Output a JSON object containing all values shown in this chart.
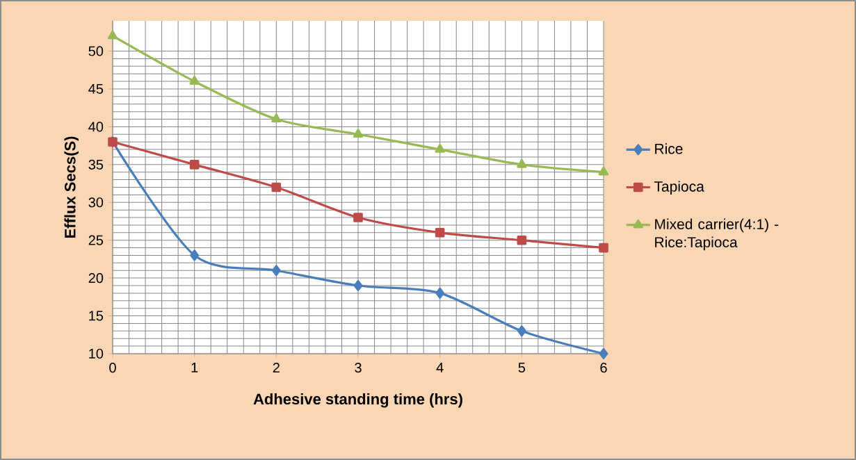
{
  "chart_data": {
    "type": "line",
    "xlabel": "Adhesive standing time (hrs)",
    "ylabel": "Efflux Secs(S)",
    "x": [
      0,
      1,
      2,
      3,
      4,
      5,
      6
    ],
    "series": [
      {
        "name": "Rice",
        "color": "#4a7ebb",
        "marker": "diamond",
        "values": [
          38,
          23,
          21,
          19,
          18,
          13,
          10
        ]
      },
      {
        "name": "Tapioca",
        "color": "#be4b48",
        "marker": "square",
        "values": [
          38,
          35,
          32,
          28,
          26,
          25,
          24
        ]
      },
      {
        "name": "Mixed carrier(4:1) - Rice:Tapioca",
        "color": "#98b954",
        "marker": "triangle",
        "values": [
          52,
          46,
          41,
          39,
          37,
          35,
          34
        ]
      }
    ],
    "xlim": [
      0,
      6
    ],
    "ylim": [
      10,
      54
    ],
    "xticks": [
      0,
      1,
      2,
      3,
      4,
      5,
      6
    ],
    "yticks": [
      10,
      15,
      20,
      25,
      30,
      35,
      40,
      45,
      50
    ],
    "grid": true,
    "legend": "right"
  }
}
